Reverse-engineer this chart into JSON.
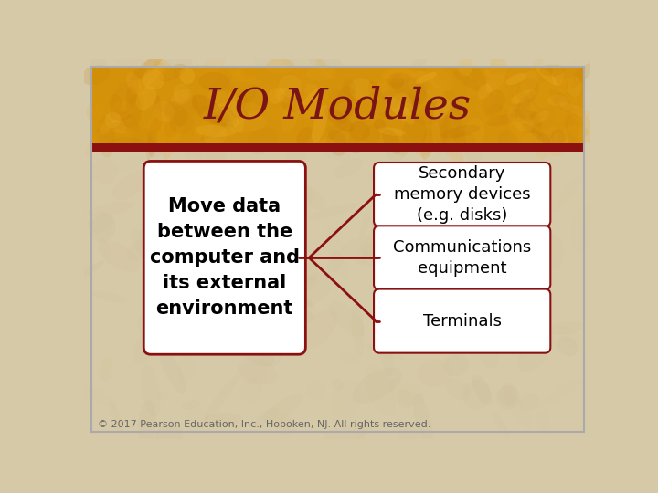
{
  "title": "I/O Modules",
  "title_color": "#7B1515",
  "title_fontsize": 34,
  "title_font": "serif",
  "background_color": "#D6C9A8",
  "header_color": "#D4920A",
  "divider_color": "#8B1010",
  "border_color": "#AAAAAA",
  "left_box_text": "Move data\nbetween the\ncomputer and\nits external\nenvironment",
  "left_box_color": "#FFFFFF",
  "left_box_border": "#8B1010",
  "right_boxes": [
    {
      "text": "Secondary\nmemory devices\n(e.g. disks)",
      "color": "#FFFFFF",
      "border": "#8B1010"
    },
    {
      "text": "Communications\nequipment",
      "color": "#FFFFFF",
      "border": "#8B1010"
    },
    {
      "text": "Terminals",
      "color": "#FFFFFF",
      "border": "#8B1010"
    }
  ],
  "arrow_color": "#8B1010",
  "text_color": "#000000",
  "copyright_text": "© 2017 Pearson Education, Inc., Hoboken, NJ. All rights reserved.",
  "copyright_fontsize": 8,
  "copyright_color": "#666666"
}
